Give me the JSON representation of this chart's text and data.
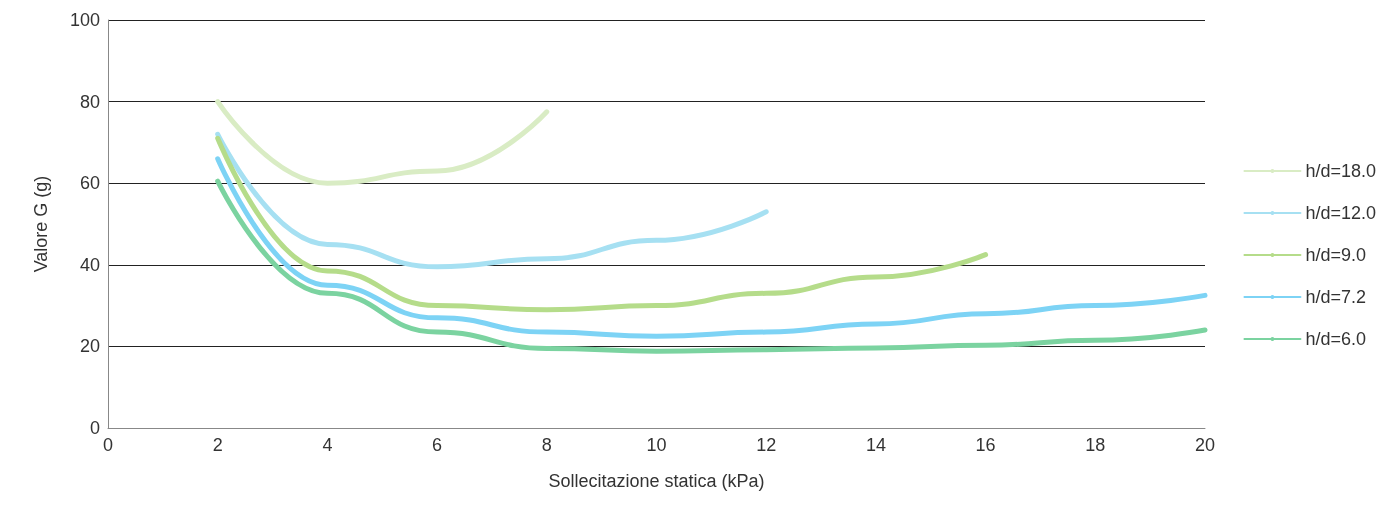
{
  "chart_data": {
    "type": "line",
    "xlabel": "Sollecitazione statica (kPa)",
    "ylabel": "Valore G (g)",
    "xlim": [
      0,
      20
    ],
    "xticks": [
      0,
      2,
      4,
      6,
      8,
      10,
      12,
      14,
      16,
      18,
      20
    ],
    "ylim": [
      0,
      100
    ],
    "yticks": [
      0,
      20,
      40,
      60,
      80,
      100
    ],
    "grid": "y",
    "legend": "right",
    "marker": "none",
    "line_style": "solid",
    "series": [
      {
        "name": "h/d=18.0",
        "color": "#d9ecc4",
        "x": [
          2,
          4,
          6,
          8
        ],
        "values": [
          80,
          60,
          63,
          77.5
        ]
      },
      {
        "name": "h/d=12.0",
        "color": "#a6e0f2",
        "x": [
          2,
          4,
          6,
          8,
          10,
          12
        ],
        "values": [
          72,
          45,
          39.5,
          41.5,
          46,
          53
        ]
      },
      {
        "name": "h/d=9.0",
        "color": "#b5dc8a",
        "x": [
          2,
          4,
          6,
          8,
          10,
          12,
          14,
          16
        ],
        "values": [
          71,
          38.5,
          30,
          29,
          30,
          33,
          37,
          42.5
        ]
      },
      {
        "name": "h/d=7.2",
        "color": "#7dd3f5",
        "x": [
          2,
          4,
          6,
          8,
          10,
          12,
          14,
          16,
          18,
          20
        ],
        "values": [
          66,
          35,
          27,
          23.5,
          22.5,
          23.5,
          25.5,
          28,
          30,
          32.5
        ]
      },
      {
        "name": "h/d=6.0",
        "color": "#7bd3a0",
        "x": [
          2,
          4,
          6,
          8,
          10,
          12,
          14,
          16,
          18,
          20
        ],
        "values": [
          60.5,
          33,
          23.5,
          19.5,
          18.8,
          19.2,
          19.6,
          20.3,
          21.5,
          24
        ]
      }
    ]
  }
}
